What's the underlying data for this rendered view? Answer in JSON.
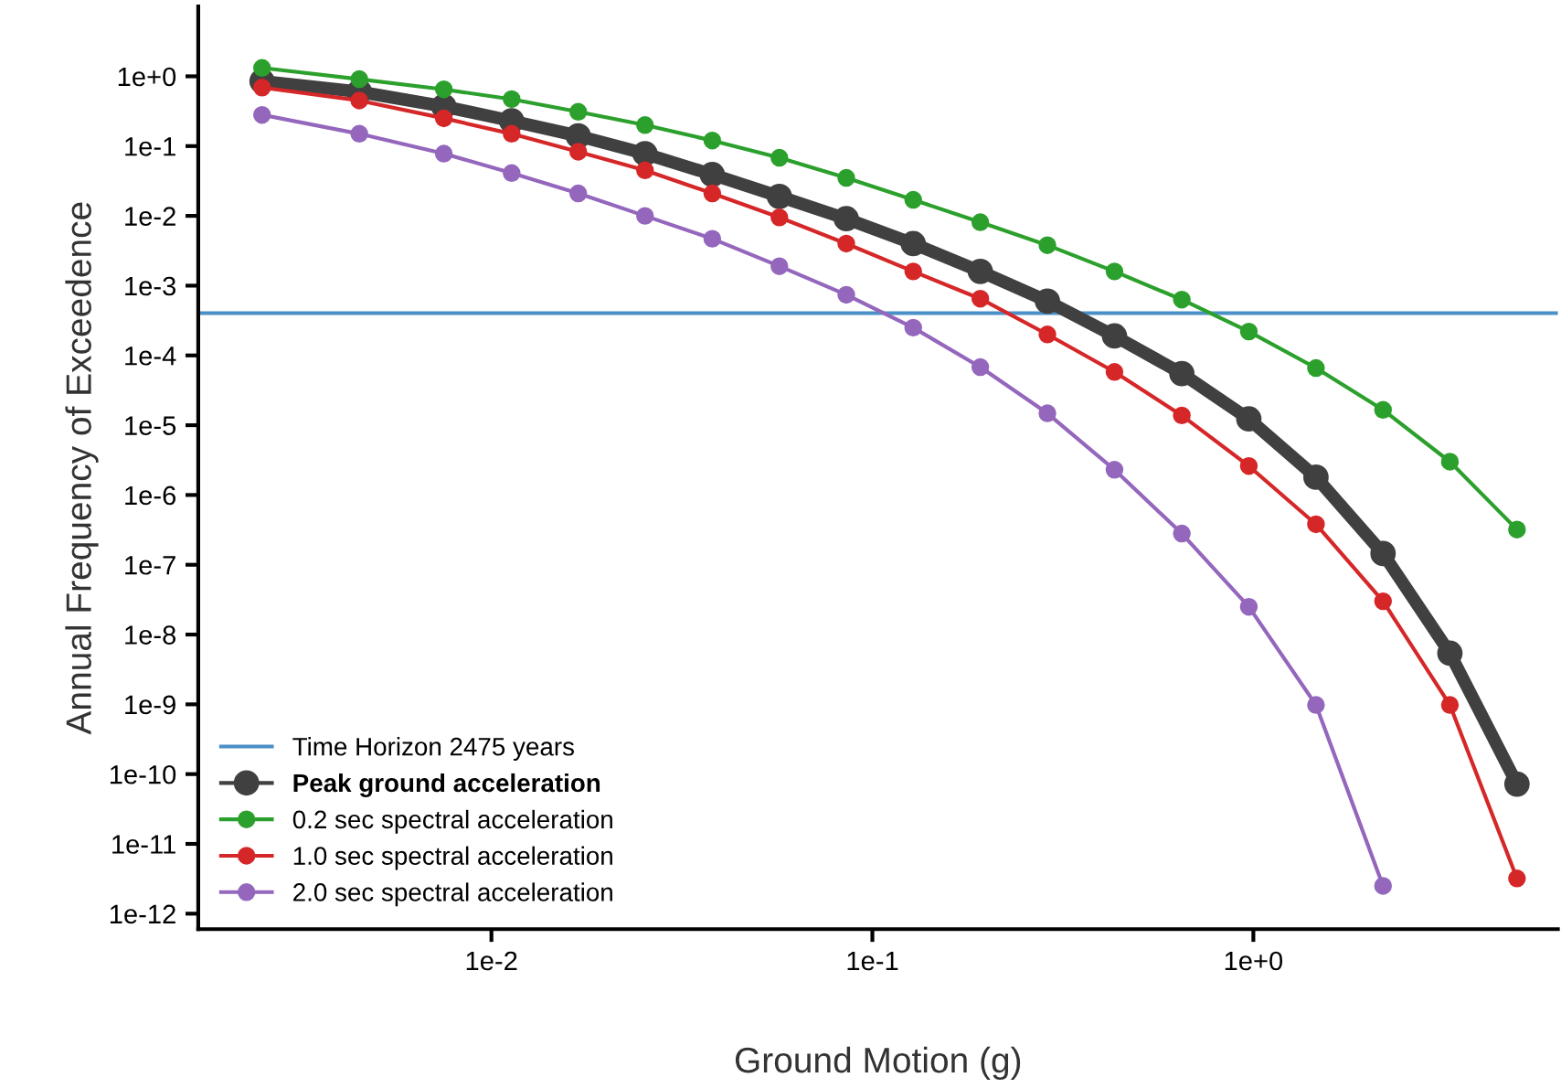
{
  "chart_data": {
    "type": "line",
    "xlabel": "Ground Motion (g)",
    "ylabel": "Annual Frequency of Exceedence",
    "x": [
      0.0025,
      0.0045,
      0.0075,
      0.0113,
      0.0169,
      0.0253,
      0.038,
      0.057,
      0.0854,
      0.128,
      0.192,
      0.288,
      0.432,
      0.649,
      0.973,
      1.46,
      2.19,
      3.28,
      4.92
    ],
    "series": [
      {
        "name": "Peak ground acceleration",
        "color": "#404040",
        "values": [
          0.85,
          0.6,
          0.37,
          0.23,
          0.14,
          0.078,
          0.039,
          0.019,
          0.0091,
          0.004,
          0.0016,
          0.0006,
          0.00019,
          5.5e-05,
          1.23e-05,
          1.8e-06,
          1.45e-07,
          5.4e-09,
          7.2e-11
        ]
      },
      {
        "name": "0.2 sec spectral acceleration",
        "color": "#2ca02c",
        "values": [
          1.32,
          0.91,
          0.65,
          0.47,
          0.31,
          0.2,
          0.12,
          0.068,
          0.035,
          0.017,
          0.0081,
          0.0038,
          0.0016,
          0.00063,
          0.00022,
          6.6e-05,
          1.66e-05,
          3e-06,
          3.2e-07
        ]
      },
      {
        "name": "1.0 sec spectral acceleration",
        "color": "#d62728",
        "values": [
          0.69,
          0.45,
          0.25,
          0.15,
          0.083,
          0.045,
          0.021,
          0.0095,
          0.004,
          0.0016,
          0.00065,
          0.0002,
          5.8e-05,
          1.38e-05,
          2.6e-06,
          3.8e-07,
          3e-08,
          9.8e-10,
          3.2e-12
        ]
      },
      {
        "name": "2.0 sec spectral acceleration",
        "color": "#9467bd",
        "values": [
          0.28,
          0.15,
          0.078,
          0.041,
          0.021,
          0.01,
          0.0047,
          0.0019,
          0.00074,
          0.00025,
          6.8e-05,
          1.48e-05,
          2.3e-06,
          2.8e-07,
          2.5e-08,
          9.8e-10,
          2.5e-12,
          null,
          null
        ]
      }
    ],
    "ref_lines": [
      {
        "axis": "y",
        "value": 0.000404,
        "label": "Time Horizon 2475 years",
        "color": "#4a90c8",
        "line_style": "solid"
      }
    ],
    "log": "xy",
    "marker": "circle",
    "line_style": "solid",
    "grid": false,
    "legend": "bottom left",
    "xlim": [
      0.0017,
      6.3
    ],
    "ylim": [
      6e-13,
      10
    ],
    "xticks": [
      {
        "value": 0.01,
        "label": "1e-2"
      },
      {
        "value": 0.1,
        "label": "1e-1"
      },
      {
        "value": 1,
        "label": "1e+0"
      }
    ],
    "yticks": [
      {
        "value": 1,
        "label": "1e+0"
      },
      {
        "value": 0.1,
        "label": "1e-1"
      },
      {
        "value": 0.01,
        "label": "1e-2"
      },
      {
        "value": 0.001,
        "label": "1e-3"
      },
      {
        "value": 0.0001,
        "label": "1e-4"
      },
      {
        "value": 1e-05,
        "label": "1e-5"
      },
      {
        "value": 1e-06,
        "label": "1e-6"
      },
      {
        "value": 1e-07,
        "label": "1e-7"
      },
      {
        "value": 1e-08,
        "label": "1e-8"
      },
      {
        "value": 1e-09,
        "label": "1e-9"
      },
      {
        "value": 1e-10,
        "label": "1e-10"
      },
      {
        "value": 1e-11,
        "label": "1e-11"
      },
      {
        "value": 1e-12,
        "label": "1e-12"
      }
    ]
  }
}
